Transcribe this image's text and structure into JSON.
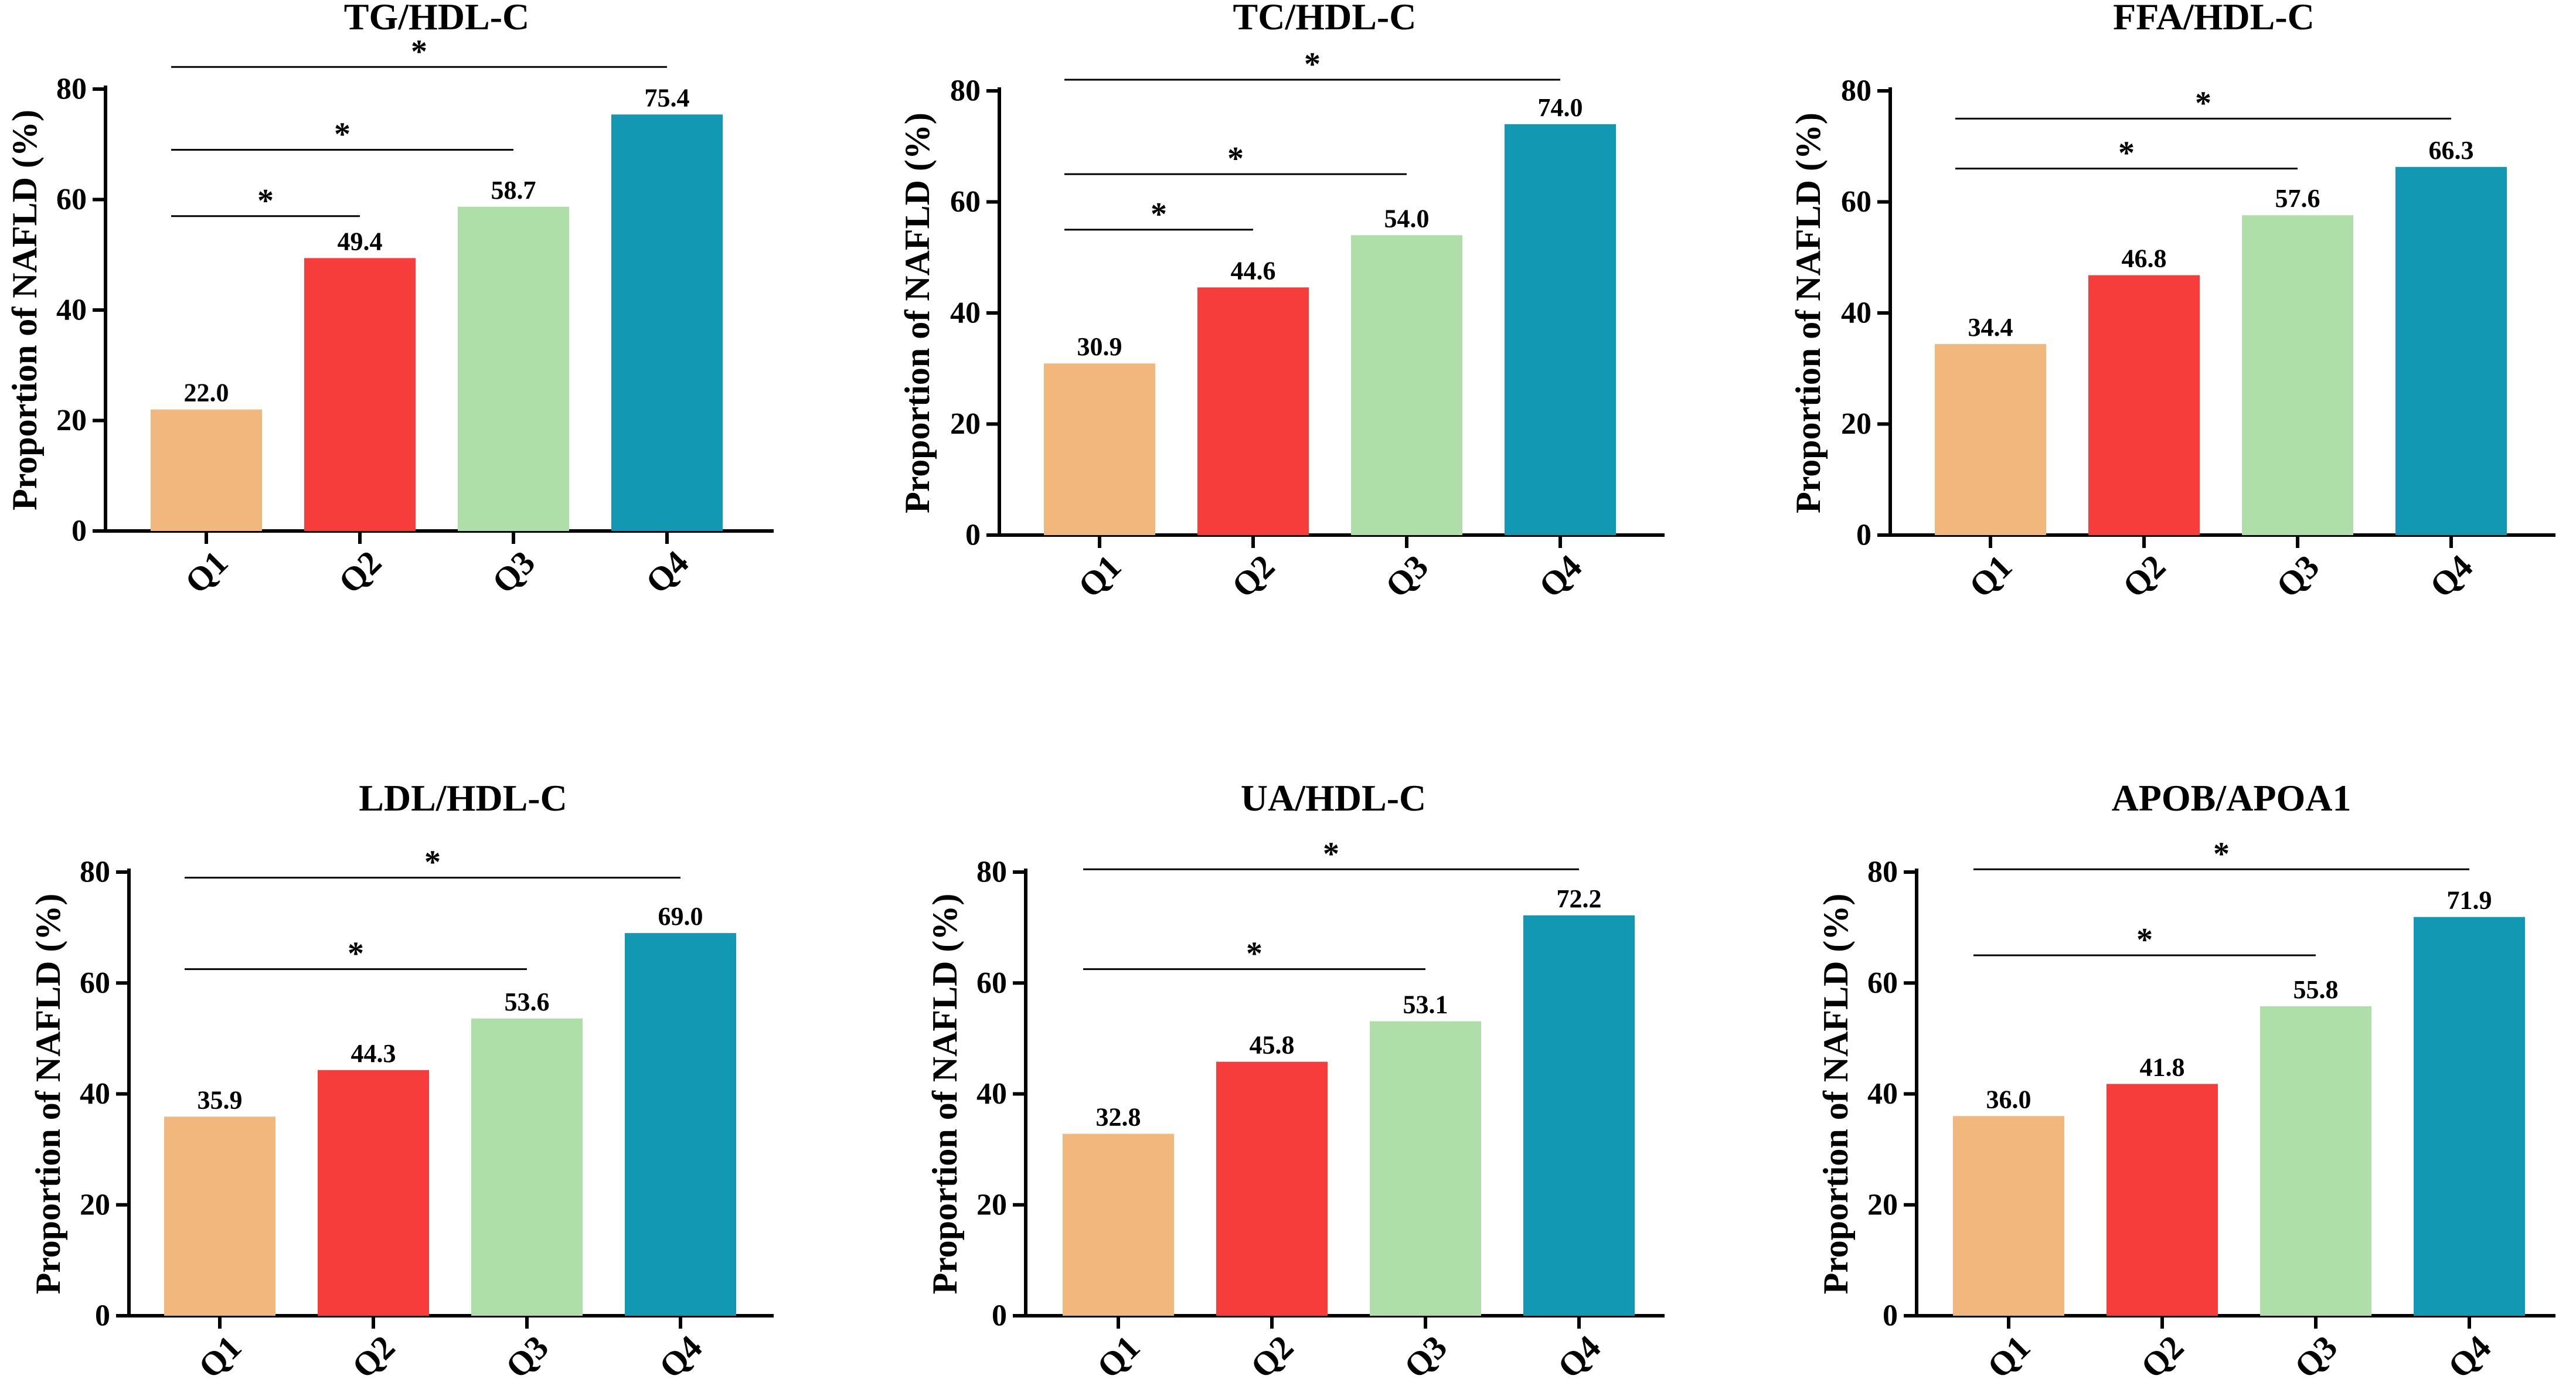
{
  "figure": {
    "palette": [
      "#F1B77D",
      "#F73C3C",
      "#AEDFA9",
      "#1298B2"
    ]
  },
  "chart_data": [
    {
      "type": "bar",
      "title": "TG/HDL-C",
      "xlabel": "",
      "ylabel": "Proportion of NAFLD (%)",
      "categories": [
        "Q1",
        "Q2",
        "Q3",
        "Q4"
      ],
      "values": [
        22.0,
        49.4,
        58.7,
        75.4
      ],
      "value_labels": [
        "22.0",
        "49.4",
        "58.7",
        "75.4"
      ],
      "ylim": [
        0,
        80
      ],
      "yticks": [
        0,
        20,
        40,
        60,
        80
      ],
      "grid": false,
      "legend": "none",
      "significance": [
        {
          "from": "Q1",
          "to": "Q4",
          "level": 84,
          "label": "*"
        },
        {
          "from": "Q1",
          "to": "Q3",
          "level": 69,
          "label": "*"
        },
        {
          "from": "Q1",
          "to": "Q2",
          "level": 57,
          "label": "*"
        }
      ]
    },
    {
      "type": "bar",
      "title": "TC/HDL-C",
      "xlabel": "",
      "ylabel": "Proportion of NAFLD (%)",
      "categories": [
        "Q1",
        "Q2",
        "Q3",
        "Q4"
      ],
      "values": [
        30.9,
        44.6,
        54.0,
        74.0
      ],
      "value_labels": [
        "30.9",
        "44.6",
        "54.0",
        "74.0"
      ],
      "ylim": [
        0,
        80
      ],
      "yticks": [
        0,
        20,
        40,
        60,
        80
      ],
      "grid": false,
      "legend": "none",
      "significance": [
        {
          "from": "Q1",
          "to": "Q4",
          "level": 82,
          "label": "*"
        },
        {
          "from": "Q1",
          "to": "Q3",
          "level": 65,
          "label": "*"
        },
        {
          "from": "Q1",
          "to": "Q2",
          "level": 55,
          "label": "*"
        }
      ]
    },
    {
      "type": "bar",
      "title": "FFA/HDL-C",
      "xlabel": "",
      "ylabel": "Proportion of NAFLD (%)",
      "categories": [
        "Q1",
        "Q2",
        "Q3",
        "Q4"
      ],
      "values": [
        34.4,
        46.8,
        57.6,
        66.3
      ],
      "value_labels": [
        "34.4",
        "46.8",
        "57.6",
        "66.3"
      ],
      "ylim": [
        0,
        80
      ],
      "yticks": [
        0,
        20,
        40,
        60,
        80
      ],
      "grid": false,
      "legend": "none",
      "significance": [
        {
          "from": "Q1",
          "to": "Q4",
          "level": 75,
          "label": "*"
        },
        {
          "from": "Q1",
          "to": "Q3",
          "level": 66,
          "label": "*"
        }
      ]
    },
    {
      "type": "bar",
      "title": "LDL/HDL-C",
      "xlabel": "",
      "ylabel": "Proportion of NAFLD (%)",
      "categories": [
        "Q1",
        "Q2",
        "Q3",
        "Q4"
      ],
      "values": [
        35.9,
        44.3,
        53.6,
        69.0
      ],
      "value_labels": [
        "35.9",
        "44.3",
        "53.6",
        "69.0"
      ],
      "ylim": [
        0,
        80
      ],
      "yticks": [
        0,
        20,
        40,
        60,
        80
      ],
      "grid": false,
      "legend": "none",
      "significance": [
        {
          "from": "Q1",
          "to": "Q4",
          "level": 79,
          "label": "*"
        },
        {
          "from": "Q1",
          "to": "Q3",
          "level": 62.5,
          "label": "*"
        }
      ]
    },
    {
      "type": "bar",
      "title": "UA/HDL-C",
      "xlabel": "",
      "ylabel": "Proportion of NAFLD (%)",
      "categories": [
        "Q1",
        "Q2",
        "Q3",
        "Q4"
      ],
      "values": [
        32.8,
        45.8,
        53.1,
        72.2
      ],
      "value_labels": [
        "32.8",
        "45.8",
        "53.1",
        "72.2"
      ],
      "ylim": [
        0,
        80
      ],
      "yticks": [
        0,
        20,
        40,
        60,
        80
      ],
      "grid": false,
      "legend": "none",
      "significance": [
        {
          "from": "Q1",
          "to": "Q4",
          "level": 80.5,
          "label": "*"
        },
        {
          "from": "Q1",
          "to": "Q3",
          "level": 62.5,
          "label": "*"
        }
      ]
    },
    {
      "type": "bar",
      "title": "APOB/APOA1",
      "xlabel": "",
      "ylabel": "Proportion of NAFLD (%)",
      "categories": [
        "Q1",
        "Q2",
        "Q3",
        "Q4"
      ],
      "values": [
        36.0,
        41.8,
        55.8,
        71.9
      ],
      "value_labels": [
        "36.0",
        "41.8",
        "55.8",
        "71.9"
      ],
      "ylim": [
        0,
        80
      ],
      "yticks": [
        0,
        20,
        40,
        60,
        80
      ],
      "grid": false,
      "legend": "none",
      "significance": [
        {
          "from": "Q1",
          "to": "Q4",
          "level": 80.5,
          "label": "*"
        },
        {
          "from": "Q1",
          "to": "Q3",
          "level": 65,
          "label": "*"
        }
      ]
    }
  ]
}
